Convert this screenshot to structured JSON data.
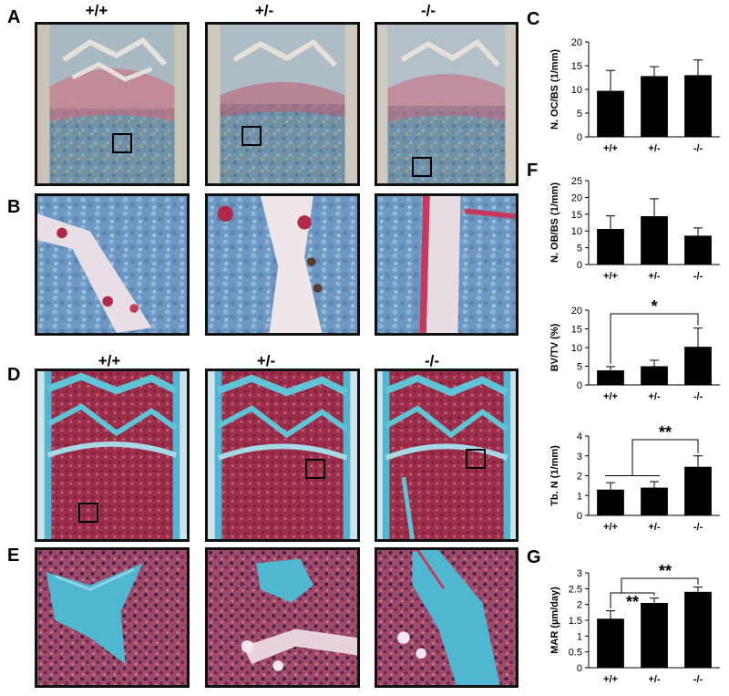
{
  "panel_labels": {
    "a": "A",
    "b": "B",
    "c": "C",
    "d": "D",
    "e": "E",
    "f": "F",
    "g": "G"
  },
  "genotype_headers": {
    "wt": "+/+",
    "het": "+/-",
    "ko": "-/-"
  },
  "colors": {
    "stain_trap": "#c43a5a",
    "stain_background": "#5f88a8",
    "masson_marrow": "#9b2f4a",
    "masson_bone": "#4fb7cf",
    "bar": "#000000"
  },
  "chart_data": [
    {
      "id": "C",
      "type": "bar",
      "categories": [
        "+/+",
        "+/-",
        "-/-"
      ],
      "values": [
        9.7,
        12.8,
        13.0
      ],
      "errors": [
        4.3,
        2.0,
        3.2
      ],
      "ylabel": "N. OC/BS (1/mm)",
      "ylim": [
        0,
        20
      ],
      "yticks": [
        0,
        5,
        10,
        15,
        20
      ]
    },
    {
      "id": "F1",
      "type": "bar",
      "categories": [
        "+/+",
        "+/-",
        "-/-"
      ],
      "values": [
        10.6,
        14.4,
        8.6
      ],
      "errors": [
        3.9,
        5.2,
        2.3
      ],
      "ylabel": "N. OB/BS (1/mm)",
      "ylim": [
        0,
        25
      ],
      "yticks": [
        0,
        5,
        10,
        15,
        20,
        25
      ]
    },
    {
      "id": "F2",
      "type": "bar",
      "categories": [
        "+/+",
        "+/-",
        "-/-"
      ],
      "values": [
        3.9,
        5.0,
        10.2
      ],
      "errors": [
        1.0,
        1.6,
        5.0
      ],
      "ylabel": "BV/TV (%)",
      "ylim": [
        0,
        20
      ],
      "yticks": [
        0,
        5,
        10,
        15,
        20
      ],
      "annotations": [
        {
          "text": "*",
          "from": "+/+",
          "to": "-/-"
        }
      ]
    },
    {
      "id": "F3",
      "type": "bar",
      "categories": [
        "+/+",
        "+/-",
        "-/-"
      ],
      "values": [
        1.3,
        1.4,
        2.45
      ],
      "errors": [
        0.35,
        0.3,
        0.55
      ],
      "ylabel": "Tb. N (1/mm)",
      "ylim": [
        0,
        4
      ],
      "yticks": [
        0,
        1,
        2,
        3,
        4
      ],
      "annotations": [
        {
          "text": "**",
          "from": "+/+ and +/-",
          "to": "-/-"
        }
      ]
    },
    {
      "id": "G",
      "type": "bar",
      "categories": [
        "+/+",
        "+/-",
        "-/-"
      ],
      "values": [
        1.55,
        2.05,
        2.4
      ],
      "errors": [
        0.25,
        0.15,
        0.15
      ],
      "ylabel": "MAR (µm/day)",
      "ylim": [
        0,
        3
      ],
      "yticks": [
        0,
        0.5,
        1,
        1.5,
        2,
        2.5,
        3
      ],
      "annotations": [
        {
          "text": "**",
          "from": "+/+",
          "to": "+/-"
        },
        {
          "text": "**",
          "from": "+/+",
          "to": "-/-"
        }
      ]
    }
  ]
}
